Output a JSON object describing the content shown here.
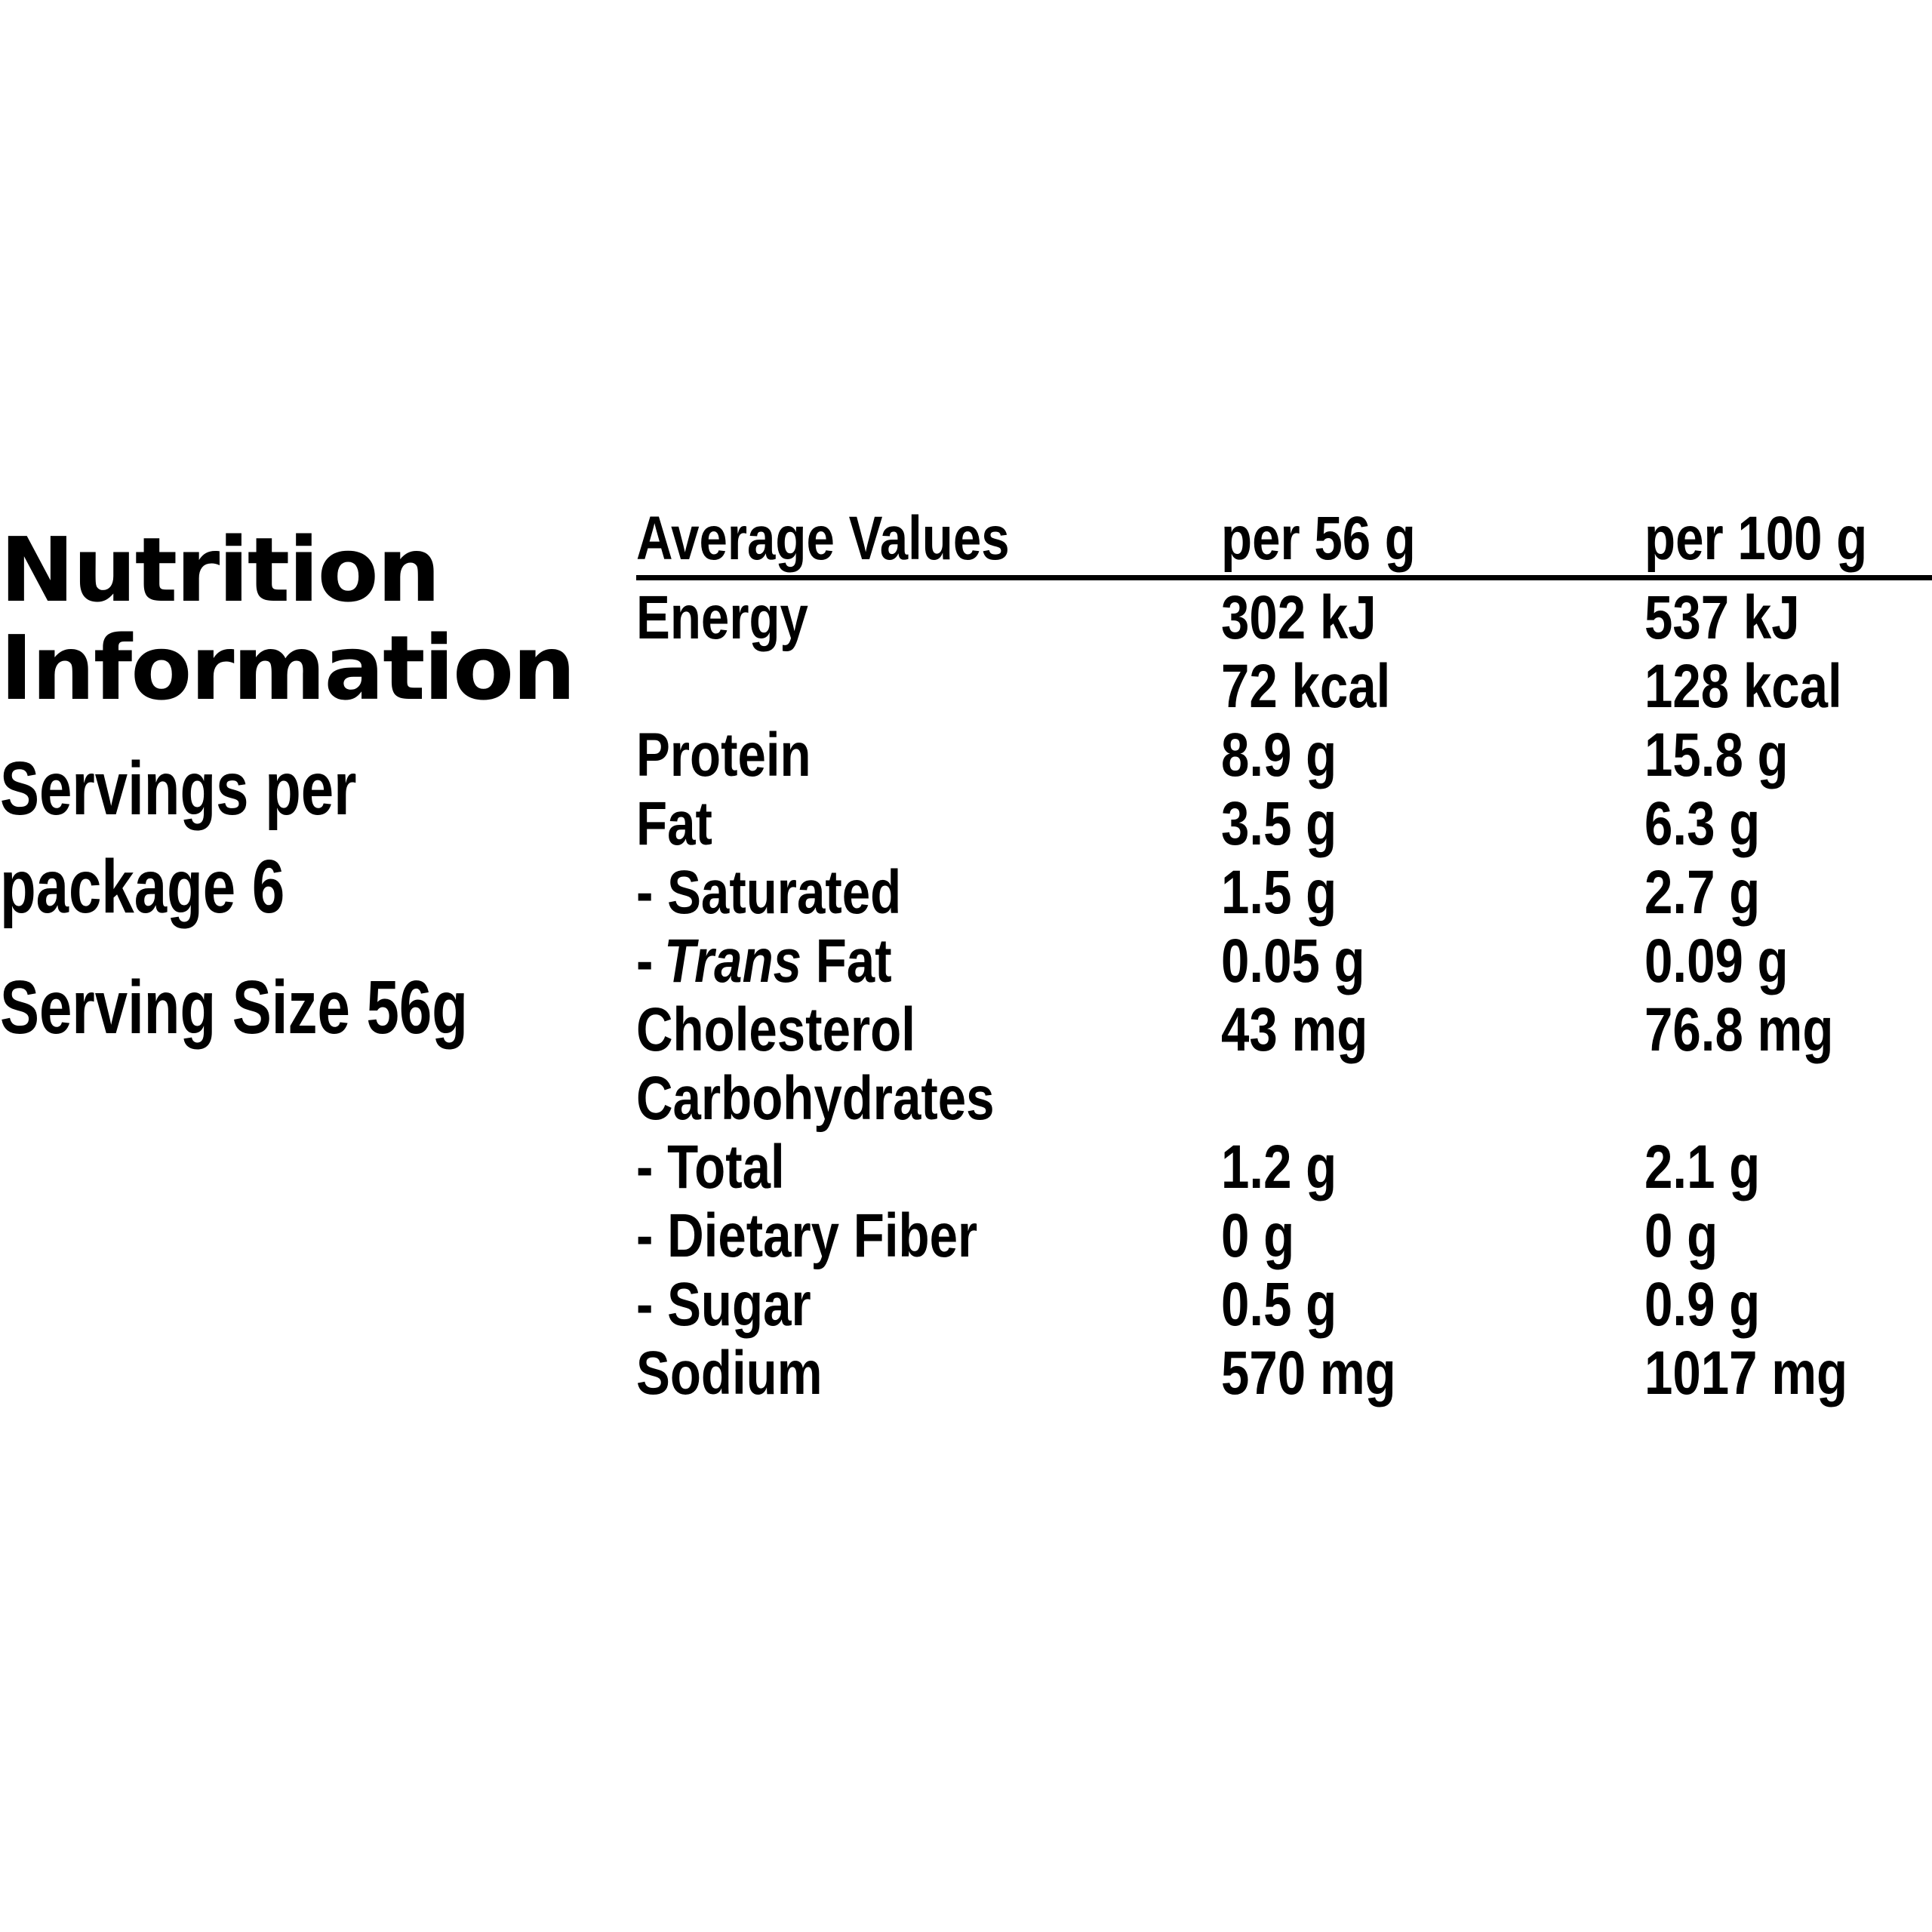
{
  "panel": {
    "title_line1": "Nutrition",
    "title_line2": "Information",
    "servings_line1": "Servings per",
    "servings_line2": "package 6",
    "serving_size": "Serving Size 56g"
  },
  "table": {
    "headers": {
      "label": "Average Values",
      "per_serving": "per 56 g",
      "per_100g": "per 100 g"
    },
    "rows": [
      {
        "label": "Energy",
        "per_serving": "302 kJ",
        "per_100g": "537 kJ"
      },
      {
        "label": "",
        "per_serving": "72 kcal",
        "per_100g": "128 kcal"
      },
      {
        "label": "Protein",
        "per_serving": "8.9 g",
        "per_100g": "15.8 g"
      },
      {
        "label": "Fat",
        "per_serving": "3.5 g",
        "per_100g": "6.3 g"
      },
      {
        "label": "- Saturated",
        "per_serving": "1.5 g",
        "per_100g": "2.7 g"
      },
      {
        "label_dash": "-",
        "label_italic": "Trans",
        "label_rest": " Fat",
        "per_serving": "0.05 g",
        "per_100g": "0.09 g"
      },
      {
        "label": "Cholesterol",
        "per_serving": "43 mg",
        "per_100g": "76.8 mg"
      },
      {
        "label": "Carbohydrates",
        "per_serving": "",
        "per_100g": ""
      },
      {
        "label": "- Total",
        "per_serving": "1.2 g",
        "per_100g": "2.1 g"
      },
      {
        "label": "- Dietary Fiber",
        "per_serving": "0 g",
        "per_100g": "0 g"
      },
      {
        "label": "- Sugar",
        "per_serving": "0.5 g",
        "per_100g": "0.9 g"
      },
      {
        "label": "Sodium",
        "per_serving": "570 mg",
        "per_100g": "1017 mg"
      }
    ]
  }
}
